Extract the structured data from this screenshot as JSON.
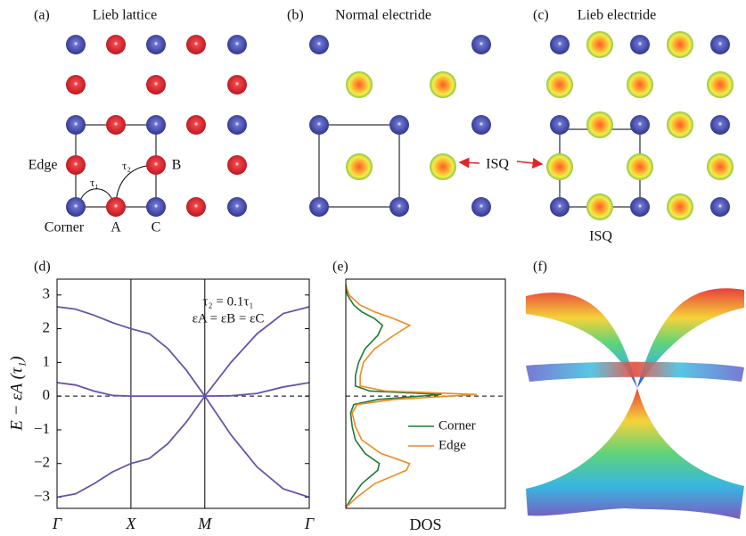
{
  "panels": {
    "a": {
      "label": "(a)",
      "title": "Lieb lattice",
      "edge": "Edge",
      "tau1": "τ₁",
      "tau2": "τ₂",
      "b": "B",
      "corner": "Corner",
      "site_a": "A",
      "site_c": "C"
    },
    "b": {
      "label": "(b)",
      "title": "Normal electride",
      "isq": "ISQ"
    },
    "c": {
      "label": "(c)",
      "title": "Lieb electride",
      "isq": "ISQ"
    },
    "f": {
      "label": "(f)"
    }
  },
  "chart_data": [
    {
      "type": "line",
      "label": "(d)",
      "ylabel": "E − εA (τ₁)",
      "annotations": [
        "τ₂ = 0.1τ₁",
        "εA = εB = εC"
      ],
      "x": [
        0,
        0.25,
        0.5,
        0.75,
        1,
        1.25,
        1.5,
        1.75,
        2,
        2.354,
        2.707,
        3.061,
        3.414
      ],
      "series": [
        {
          "color": "#6a52a8",
          "values": [
            2.65,
            2.58,
            2.4,
            2.18,
            2.0,
            1.85,
            1.41,
            0.77,
            0,
            1.0,
            1.85,
            2.45,
            2.65
          ]
        },
        {
          "color": "#6a52a8",
          "values": [
            0.4,
            0.33,
            0.15,
            0.02,
            0,
            0,
            0,
            0,
            0,
            0.01,
            0.08,
            0.27,
            0.4
          ]
        },
        {
          "color": "#6a52a8",
          "values": [
            -3.0,
            -2.9,
            -2.6,
            -2.25,
            -2.0,
            -1.85,
            -1.41,
            -0.77,
            0,
            -1.15,
            -2.1,
            -2.75,
            -3.0
          ]
        }
      ],
      "xlim": [
        0,
        3.414
      ],
      "xticks": [
        {
          "value": 0,
          "label": "Γ"
        },
        {
          "value": 1,
          "label": "X"
        },
        {
          "value": 2,
          "label": "M"
        },
        {
          "value": 3.414,
          "label": "Γ"
        }
      ],
      "ylim": [
        -3.33,
        3.47
      ],
      "yticks": [
        {
          "value": -3,
          "label": "−3"
        },
        {
          "value": -2,
          "label": "−2"
        },
        {
          "value": -1,
          "label": "−1"
        },
        0,
        1,
        2,
        3
      ],
      "grid": "x",
      "hline": 0
    },
    {
      "type": "dos",
      "label": "(e)",
      "xlabel": "DOS",
      "y": [
        -3.3,
        -3.0,
        -2.6,
        -2.2,
        -2.0,
        -1.7,
        -1.3,
        -0.9,
        -0.5,
        -0.25,
        -0.1,
        0.05,
        0.15,
        0.3,
        0.6,
        1.0,
        1.4,
        1.8,
        2.1,
        2.3,
        2.5,
        2.7,
        3.0,
        3.3
      ],
      "series": [
        {
          "name": "Corner",
          "color": "#1f7a3a",
          "values": [
            0,
            0.4,
            1.0,
            2.0,
            2.1,
            1.2,
            0.6,
            0.4,
            0.3,
            0.5,
            2.0,
            6.0,
            1.5,
            0.6,
            0.6,
            0.8,
            1.2,
            2.0,
            2.3,
            1.8,
            1.0,
            0.5,
            0.1,
            0
          ]
        },
        {
          "name": "Edge",
          "color": "#f08a1c",
          "values": [
            0,
            0.7,
            1.8,
            3.8,
            4.0,
            2.2,
            1.0,
            0.6,
            0.4,
            0.7,
            3.0,
            8.2,
            2.5,
            0.9,
            0.9,
            1.1,
            1.8,
            3.0,
            4.0,
            3.0,
            1.8,
            0.9,
            0.2,
            0
          ]
        }
      ],
      "xlim": [
        0,
        10
      ],
      "ylim": [
        -3.33,
        3.47
      ],
      "hline": 0,
      "legend": "center-right"
    }
  ]
}
